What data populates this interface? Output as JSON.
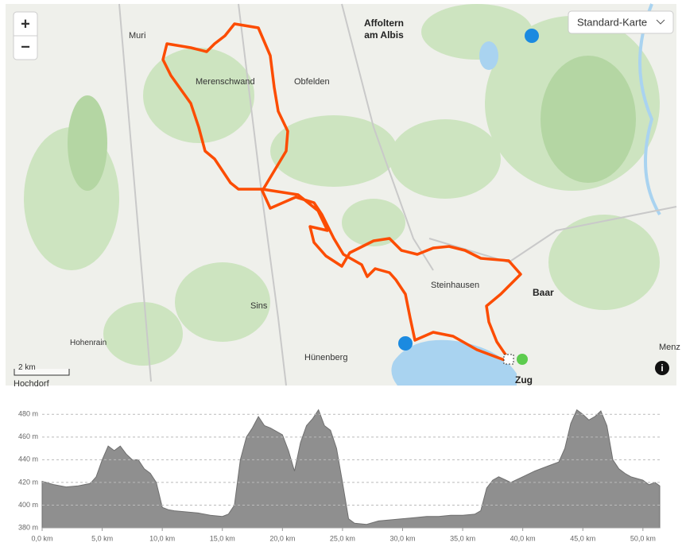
{
  "controls": {
    "zoom_in": "+",
    "zoom_out": "−",
    "layer": "Standard-Karte",
    "scale": "2 km"
  },
  "places": {
    "muri": "Muri",
    "merenschwand": "Merenschwand",
    "obfelden": "Obfelden",
    "affoltern": [
      "Affoltern",
      "am Albis"
    ],
    "sins": "Sins",
    "huenenberg": "Hünenberg",
    "steinhausen": "Steinhausen",
    "baar": "Baar",
    "zug": "Zug",
    "hohenrain": "Hohenrain",
    "hochdorf": "Hochdorf",
    "menz": "Menz"
  },
  "chart_data": {
    "type": "area",
    "color": "#8f8f8f",
    "x": [
      0,
      1,
      2,
      3,
      4,
      4.5,
      5,
      5.5,
      6,
      6.5,
      7,
      7.5,
      8,
      8.5,
      9,
      9.5,
      10,
      10.5,
      11,
      12,
      13,
      14,
      15,
      15.5,
      16,
      16.5,
      17,
      17.5,
      18,
      18.5,
      19,
      20,
      20.5,
      21,
      21.5,
      22,
      22.5,
      23,
      23.5,
      24,
      24.5,
      25,
      25.5,
      26,
      27,
      28,
      29,
      30,
      31,
      32,
      33,
      34,
      35,
      36,
      36.5,
      37,
      37.5,
      38,
      39,
      40,
      41,
      42,
      43,
      43.5,
      44,
      44.5,
      45,
      45.5,
      46,
      46.5,
      47,
      47.5,
      48,
      48.5,
      49,
      50,
      50.5,
      51,
      51.4
    ],
    "values": [
      421,
      418,
      416,
      417,
      419,
      425,
      440,
      452,
      448,
      452,
      445,
      440,
      440,
      432,
      428,
      420,
      398,
      396,
      395,
      394,
      393,
      391,
      390,
      392,
      400,
      440,
      460,
      468,
      478,
      470,
      468,
      462,
      448,
      430,
      455,
      470,
      476,
      484,
      470,
      466,
      450,
      420,
      388,
      384,
      383,
      386,
      387,
      388,
      389,
      390,
      390,
      391,
      391,
      392,
      395,
      415,
      422,
      425,
      420,
      425,
      430,
      434,
      438,
      450,
      472,
      484,
      480,
      475,
      478,
      483,
      470,
      440,
      432,
      428,
      425,
      422,
      418,
      420,
      417
    ],
    "xlim": [
      0,
      51.4
    ],
    "ylim": [
      380,
      490
    ],
    "xticks": [
      {
        "value": 0,
        "label": "0,0 km"
      },
      {
        "value": 5,
        "label": "5,0 km"
      },
      {
        "value": 10,
        "label": "10,0 km"
      },
      {
        "value": 15,
        "label": "15,0 km"
      },
      {
        "value": 20,
        "label": "20,0 km"
      },
      {
        "value": 25,
        "label": "25,0 km"
      },
      {
        "value": 30,
        "label": "30,0 km"
      },
      {
        "value": 35,
        "label": "35,0 km"
      },
      {
        "value": 40,
        "label": "40,0 km"
      },
      {
        "value": 45,
        "label": "45,0 km"
      },
      {
        "value": 50,
        "label": "50,0 km"
      }
    ],
    "yticks": [
      {
        "value": 380,
        "label": "380 m"
      },
      {
        "value": 400,
        "label": "400 m"
      },
      {
        "value": 420,
        "label": "420 m"
      },
      {
        "value": 440,
        "label": "440 m"
      },
      {
        "value": 460,
        "label": "460 m"
      },
      {
        "value": 480,
        "label": "480 m"
      }
    ],
    "grid": true
  }
}
